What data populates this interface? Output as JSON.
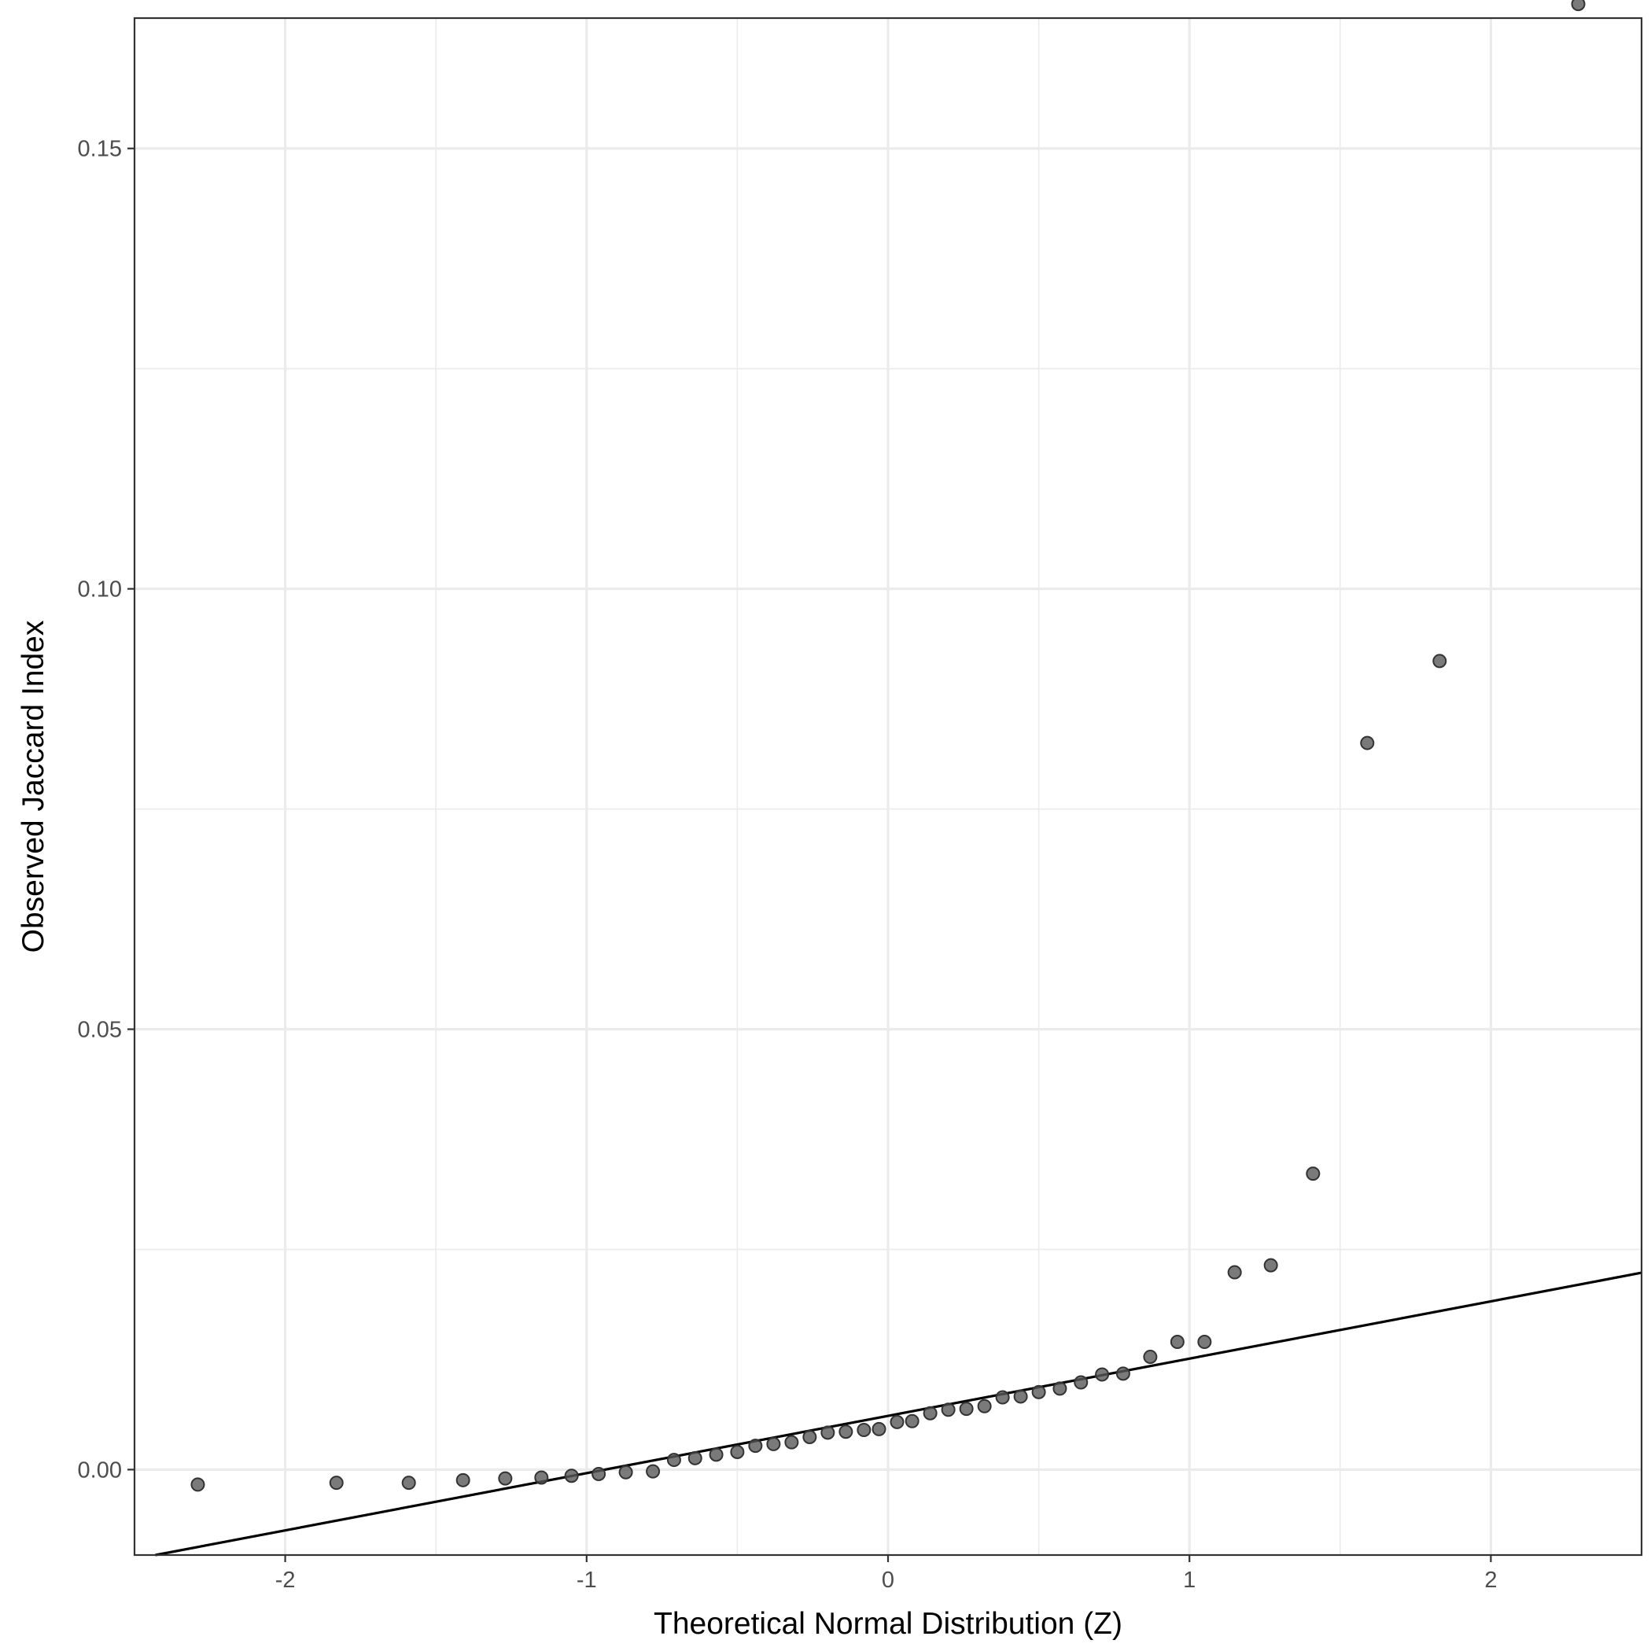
{
  "chart_data": {
    "type": "scatter",
    "title": "",
    "xlabel": "Theoretical Normal Distribution (Z)",
    "ylabel": "Observed Jaccard Index",
    "xlim": [
      -2.5,
      2.5
    ],
    "ylim": [
      -0.0097,
      0.1648
    ],
    "x_ticks": [
      -2,
      -1,
      0,
      1,
      2
    ],
    "x_tick_labels": [
      "-2",
      "-1",
      "0",
      "1",
      "2"
    ],
    "y_ticks": [
      0.0,
      0.05,
      0.1,
      0.15
    ],
    "y_tick_labels": [
      "0.00",
      "0.05",
      "0.10",
      "0.15"
    ],
    "grid": true,
    "legend": "none",
    "colors": {
      "points": "#595959",
      "reference_line": "#000000",
      "grid": "#ebebeb"
    },
    "reference_line": {
      "intercept": 0.0061,
      "slope": 0.0065
    },
    "x": [
      -2.29,
      -1.83,
      -1.59,
      -1.41,
      -1.27,
      -1.15,
      -1.05,
      -0.96,
      -0.87,
      -0.78,
      -0.71,
      -0.64,
      -0.57,
      -0.5,
      -0.44,
      -0.38,
      -0.32,
      -0.26,
      -0.2,
      -0.14,
      -0.08,
      -0.03,
      0.03,
      0.08,
      0.14,
      0.2,
      0.26,
      0.32,
      0.38,
      0.44,
      0.5,
      0.57,
      0.64,
      0.71,
      0.78,
      0.87,
      0.96,
      1.05,
      1.15,
      1.27,
      1.41,
      1.59,
      1.83,
      2.29
    ],
    "y": [
      -0.0017,
      -0.0015,
      -0.0015,
      -0.0012,
      -0.001,
      -0.0009,
      -0.0007,
      -0.0005,
      -0.0003,
      -0.0002,
      0.0011,
      0.0013,
      0.0017,
      0.002,
      0.0027,
      0.0029,
      0.0031,
      0.0037,
      0.0042,
      0.0043,
      0.0045,
      0.0046,
      0.0054,
      0.0055,
      0.0064,
      0.0068,
      0.0069,
      0.0072,
      0.0082,
      0.0083,
      0.0088,
      0.0092,
      0.0099,
      0.0108,
      0.0109,
      0.0128,
      0.0145,
      0.0145,
      0.0224,
      0.0232,
      0.0336,
      0.0825,
      0.0918,
      0.1664
    ]
  }
}
